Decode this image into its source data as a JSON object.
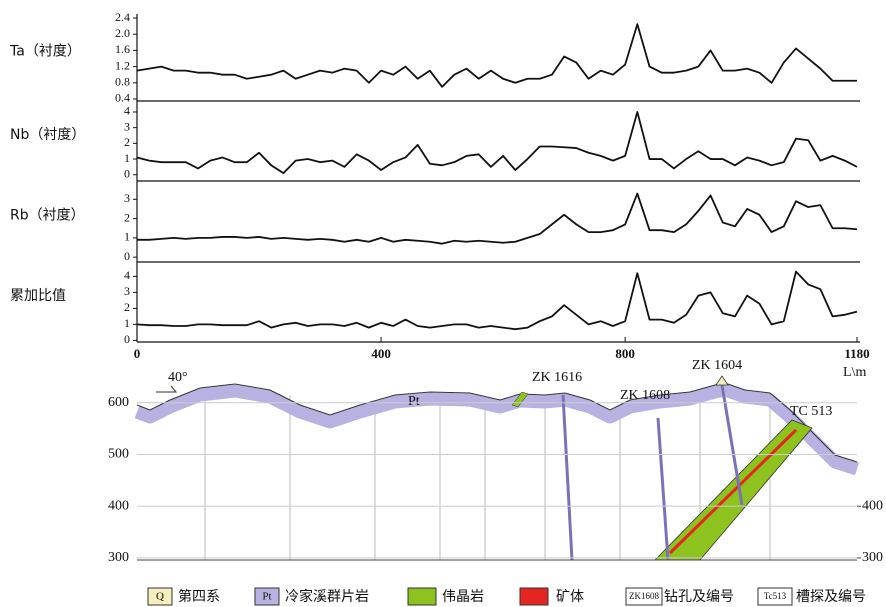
{
  "chart_data": [
    {
      "type": "line",
      "title": "Ta（衬度）",
      "color": "#111111",
      "x": [
        0,
        20,
        40,
        60,
        80,
        100,
        120,
        140,
        160,
        180,
        200,
        220,
        240,
        260,
        280,
        300,
        320,
        340,
        360,
        380,
        400,
        420,
        440,
        460,
        480,
        500,
        520,
        540,
        560,
        580,
        600,
        620,
        640,
        660,
        680,
        700,
        720,
        740,
        760,
        780,
        800,
        820,
        840,
        860,
        880,
        900,
        920,
        940,
        960,
        980,
        1000,
        1020,
        1040,
        1060,
        1080,
        1100,
        1120,
        1140,
        1160,
        1180
      ],
      "values": [
        1.1,
        1.15,
        1.2,
        1.1,
        1.1,
        1.05,
        1.05,
        1.0,
        1.0,
        0.9,
        0.95,
        1.0,
        1.1,
        0.9,
        1.0,
        1.1,
        1.05,
        1.15,
        1.1,
        0.8,
        1.1,
        1.0,
        1.2,
        0.9,
        1.1,
        0.7,
        1.0,
        1.15,
        0.9,
        1.1,
        0.9,
        0.8,
        0.9,
        0.9,
        1.0,
        1.45,
        1.3,
        0.9,
        1.1,
        1.0,
        1.25,
        2.25,
        1.2,
        1.05,
        1.05,
        1.1,
        1.2,
        1.6,
        1.1,
        1.1,
        1.15,
        1.05,
        0.8,
        1.3,
        1.65,
        1.4,
        1.15,
        0.85,
        0.85,
        0.85
      ],
      "xlim": [
        0,
        1180
      ],
      "ylim": [
        0.35,
        2.5
      ],
      "yticks": [
        0.4,
        0.8,
        1.2,
        1.6,
        {
          "value": 2,
          "label": "2.0"
        },
        2.4
      ]
    },
    {
      "type": "line",
      "title": "Nb（衬度）",
      "color": "#111111",
      "x": [
        0,
        20,
        40,
        60,
        80,
        100,
        120,
        140,
        160,
        180,
        200,
        220,
        240,
        260,
        280,
        300,
        320,
        340,
        360,
        380,
        400,
        420,
        440,
        460,
        480,
        500,
        520,
        540,
        560,
        580,
        600,
        620,
        640,
        660,
        680,
        700,
        720,
        740,
        760,
        780,
        800,
        820,
        840,
        860,
        880,
        900,
        920,
        940,
        960,
        980,
        1000,
        1020,
        1040,
        1060,
        1080,
        1100,
        1120,
        1140,
        1160,
        1180
      ],
      "values": [
        1.1,
        0.9,
        0.8,
        0.8,
        0.8,
        0.4,
        0.9,
        1.1,
        0.8,
        0.8,
        1.4,
        0.6,
        0.1,
        0.9,
        1.0,
        0.8,
        0.9,
        0.5,
        1.3,
        0.9,
        0.3,
        0.8,
        1.1,
        1.9,
        0.7,
        0.6,
        0.8,
        1.2,
        1.3,
        0.5,
        1.2,
        0.3,
        1.0,
        1.8,
        1.8,
        1.75,
        1.7,
        1.4,
        1.2,
        0.9,
        1.2,
        4.0,
        1.0,
        1.0,
        0.4,
        1.0,
        1.5,
        1.0,
        1.0,
        0.6,
        1.1,
        0.9,
        0.6,
        0.8,
        2.3,
        2.2,
        0.9,
        1.2,
        0.9,
        0.5
      ],
      "xlim": [
        0,
        1180
      ],
      "ylim": [
        -0.4,
        4.7
      ],
      "yticks": [
        0,
        1,
        2,
        3,
        4
      ]
    },
    {
      "type": "line",
      "title": "Rb（衬度）",
      "color": "#111111",
      "x": [
        0,
        20,
        40,
        60,
        80,
        100,
        120,
        140,
        160,
        180,
        200,
        220,
        240,
        260,
        280,
        300,
        320,
        340,
        360,
        380,
        400,
        420,
        440,
        460,
        480,
        500,
        520,
        540,
        560,
        580,
        600,
        620,
        640,
        660,
        680,
        700,
        720,
        740,
        760,
        780,
        800,
        820,
        840,
        860,
        880,
        900,
        920,
        940,
        960,
        980,
        1000,
        1020,
        1040,
        1060,
        1080,
        1100,
        1120,
        1140,
        1160,
        1180
      ],
      "values": [
        0.9,
        0.9,
        0.95,
        1.0,
        0.95,
        1.0,
        1.0,
        1.05,
        1.05,
        1.0,
        1.05,
        0.95,
        1.0,
        0.95,
        0.9,
        0.95,
        0.9,
        0.8,
        0.9,
        0.8,
        1.0,
        0.8,
        0.9,
        0.85,
        0.8,
        0.7,
        0.85,
        0.8,
        0.85,
        0.8,
        0.75,
        0.8,
        1.0,
        1.2,
        1.7,
        2.2,
        1.7,
        1.3,
        1.3,
        1.4,
        1.7,
        3.3,
        1.4,
        1.4,
        1.3,
        1.7,
        2.4,
        3.2,
        1.8,
        1.6,
        2.5,
        2.2,
        1.3,
        1.6,
        2.9,
        2.6,
        2.7,
        1.5,
        1.5,
        1.45
      ],
      "xlim": [
        0,
        1180
      ],
      "ylim": [
        -0.25,
        3.95
      ],
      "yticks": [
        0,
        1,
        2,
        3
      ]
    },
    {
      "type": "line",
      "title": "累加比值",
      "color": "#111111",
      "x": [
        0,
        20,
        40,
        60,
        80,
        100,
        120,
        140,
        160,
        180,
        200,
        220,
        240,
        260,
        280,
        300,
        320,
        340,
        360,
        380,
        400,
        420,
        440,
        460,
        480,
        500,
        520,
        540,
        560,
        580,
        600,
        620,
        640,
        660,
        680,
        700,
        720,
        740,
        760,
        780,
        800,
        820,
        840,
        860,
        880,
        900,
        920,
        940,
        960,
        980,
        1000,
        1020,
        1040,
        1060,
        1080,
        1100,
        1120,
        1140,
        1160,
        1180
      ],
      "values": [
        1.0,
        0.95,
        0.95,
        0.9,
        0.9,
        1.0,
        1.0,
        0.95,
        0.95,
        0.95,
        1.2,
        0.8,
        1.0,
        1.1,
        0.9,
        1.0,
        1.0,
        0.9,
        1.1,
        0.8,
        1.1,
        0.9,
        1.3,
        0.9,
        0.8,
        0.9,
        1.0,
        1.0,
        0.8,
        0.9,
        0.8,
        0.7,
        0.8,
        1.2,
        1.5,
        2.2,
        1.6,
        1.0,
        1.2,
        0.9,
        1.2,
        4.2,
        1.3,
        1.3,
        1.1,
        1.6,
        2.8,
        3.0,
        1.7,
        1.5,
        2.8,
        2.3,
        1.0,
        1.2,
        4.3,
        3.5,
        3.2,
        1.5,
        1.6,
        1.8
      ],
      "xlim": [
        0,
        1180
      ],
      "ylim": [
        -0.1,
        4.9
      ],
      "yticks": [
        0,
        1,
        2,
        3,
        4
      ],
      "xticks": [
        0,
        400,
        800,
        1180
      ],
      "x_label": "L\\m"
    }
  ],
  "section": {
    "ylim": [
      296,
      640
    ],
    "left_ticks": [
      600,
      500,
      400,
      300
    ],
    "right_ticks": [
      400,
      300
    ],
    "dip": "40°",
    "unit": "Pt",
    "drillholes": [
      "ZK 1616",
      "ZK 1608",
      "ZK 1604"
    ],
    "trench": "TC 513"
  },
  "legend": [
    {
      "symbol": "Q",
      "label": "第四系"
    },
    {
      "symbol": "Pt",
      "label": "冷家溪群片岩"
    },
    {
      "label": "伟晶岩"
    },
    {
      "label": "矿体"
    },
    {
      "symbol": "ZK1608",
      "label": "钻孔及编号"
    },
    {
      "symbol": "Tc513",
      "label": "槽探及编号"
    }
  ]
}
